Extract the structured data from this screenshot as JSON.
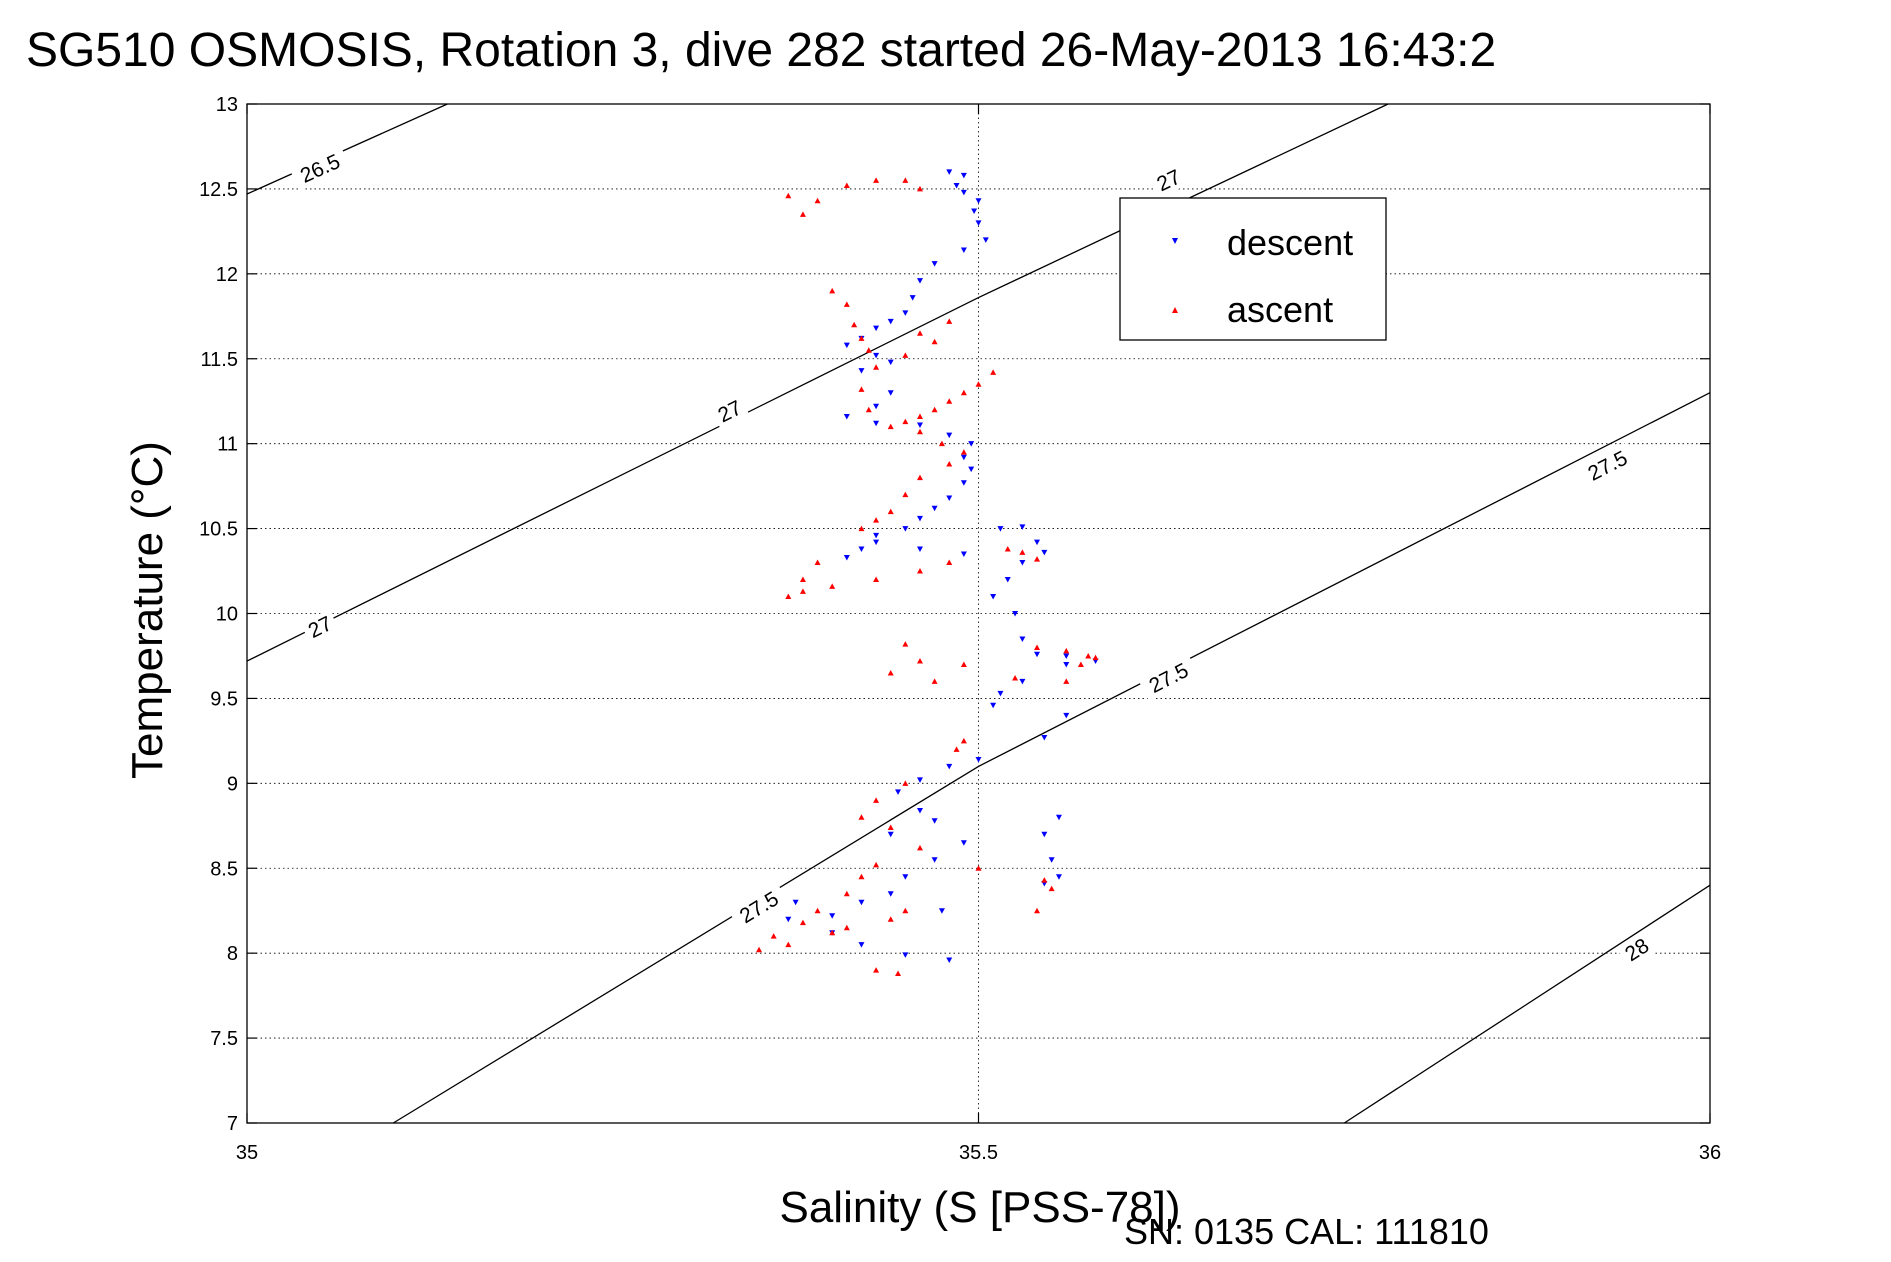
{
  "chart_data": {
    "type": "scatter",
    "title": "SG510 OSMOSIS, Rotation 3, dive 282 started 26-May-2013 16:43:2",
    "xlabel": "Salinity (S [PSS-78])",
    "ylabel": "Temperature (°C)",
    "xlim": [
      35,
      36
    ],
    "ylim": [
      7,
      13
    ],
    "x_ticks": [
      "35",
      "35.5",
      "36"
    ],
    "x_tick_values": [
      35,
      35.5,
      36
    ],
    "y_ticks": [
      "7",
      "7.5",
      "8",
      "8.5",
      "9",
      "9.5",
      "10",
      "10.5",
      "11",
      "11.5",
      "12",
      "12.5",
      "13"
    ],
    "y_tick_values": [
      7,
      7.5,
      8,
      8.5,
      9,
      9.5,
      10,
      10.5,
      11,
      11.5,
      12,
      12.5,
      13
    ],
    "grid": true,
    "legend_position": "top-right",
    "density_contours": [
      {
        "label": "26.5",
        "points": [
          [
            35,
            12.47
          ],
          [
            35.137,
            13
          ]
        ],
        "label_at": [
          [
            35.05,
            12.62
          ]
        ]
      },
      {
        "label": "27",
        "points": [
          [
            35,
            9.72
          ],
          [
            35.5,
            11.86
          ],
          [
            35.78,
            13
          ]
        ],
        "label_at": [
          [
            35.05,
            9.92
          ],
          [
            35.33,
            11.19
          ],
          [
            35.63,
            12.55
          ]
        ]
      },
      {
        "label": "27.5",
        "points": [
          [
            35.1,
            7
          ],
          [
            35.5,
            9.1
          ],
          [
            36,
            11.3
          ]
        ],
        "label_at": [
          [
            35.35,
            8.27
          ],
          [
            35.63,
            9.62
          ],
          [
            35.93,
            10.87
          ]
        ]
      },
      {
        "label": "28",
        "points": [
          [
            35.75,
            7
          ],
          [
            36,
            8.4
          ]
        ],
        "label_at": [
          [
            35.95,
            8.02
          ]
        ]
      }
    ],
    "series": [
      {
        "name": "descent",
        "color": "#0000ff",
        "marker": "triangle-down",
        "points": [
          [
            35.48,
            12.6
          ],
          [
            35.49,
            12.58
          ],
          [
            35.485,
            12.52
          ],
          [
            35.49,
            12.48
          ],
          [
            35.5,
            12.43
          ],
          [
            35.497,
            12.37
          ],
          [
            35.5,
            12.3
          ],
          [
            35.505,
            12.2
          ],
          [
            35.49,
            12.14
          ],
          [
            35.47,
            12.06
          ],
          [
            35.46,
            11.96
          ],
          [
            35.455,
            11.86
          ],
          [
            35.45,
            11.77
          ],
          [
            35.44,
            11.72
          ],
          [
            35.43,
            11.68
          ],
          [
            35.42,
            11.62
          ],
          [
            35.41,
            11.58
          ],
          [
            35.43,
            11.52
          ],
          [
            35.44,
            11.48
          ],
          [
            35.42,
            11.43
          ],
          [
            35.44,
            11.3
          ],
          [
            35.43,
            11.22
          ],
          [
            35.41,
            11.16
          ],
          [
            35.43,
            11.12
          ],
          [
            35.46,
            11.11
          ],
          [
            35.48,
            11.05
          ],
          [
            35.495,
            11.0
          ],
          [
            35.49,
            10.92
          ],
          [
            35.495,
            10.85
          ],
          [
            35.49,
            10.77
          ],
          [
            35.48,
            10.68
          ],
          [
            35.47,
            10.62
          ],
          [
            35.46,
            10.56
          ],
          [
            35.45,
            10.5
          ],
          [
            35.43,
            10.46
          ],
          [
            35.42,
            10.38
          ],
          [
            35.41,
            10.33
          ],
          [
            35.43,
            10.42
          ],
          [
            35.46,
            10.38
          ],
          [
            35.49,
            10.35
          ],
          [
            35.515,
            10.5
          ],
          [
            35.53,
            10.51
          ],
          [
            35.54,
            10.42
          ],
          [
            35.545,
            10.36
          ],
          [
            35.53,
            10.3
          ],
          [
            35.52,
            10.2
          ],
          [
            35.51,
            10.1
          ],
          [
            35.525,
            10.0
          ],
          [
            35.53,
            9.85
          ],
          [
            35.54,
            9.76
          ],
          [
            35.56,
            9.7
          ],
          [
            35.58,
            9.72
          ],
          [
            35.56,
            9.75
          ],
          [
            35.53,
            9.6
          ],
          [
            35.515,
            9.53
          ],
          [
            35.51,
            9.46
          ],
          [
            35.5,
            9.14
          ],
          [
            35.48,
            9.1
          ],
          [
            35.46,
            9.02
          ],
          [
            35.445,
            8.95
          ],
          [
            35.46,
            8.84
          ],
          [
            35.44,
            8.7
          ],
          [
            35.47,
            8.78
          ],
          [
            35.49,
            8.65
          ],
          [
            35.47,
            8.55
          ],
          [
            35.45,
            8.45
          ],
          [
            35.44,
            8.35
          ],
          [
            35.42,
            8.3
          ],
          [
            35.4,
            8.22
          ],
          [
            35.4,
            8.12
          ],
          [
            35.42,
            8.05
          ],
          [
            35.45,
            7.99
          ],
          [
            35.48,
            7.96
          ],
          [
            35.375,
            8.3
          ],
          [
            35.37,
            8.2
          ],
          [
            35.555,
            8.8
          ],
          [
            35.545,
            8.7
          ],
          [
            35.55,
            8.55
          ],
          [
            35.555,
            8.45
          ],
          [
            35.545,
            8.41
          ],
          [
            35.545,
            9.27
          ],
          [
            35.56,
            9.4
          ],
          [
            35.475,
            8.25
          ]
        ]
      },
      {
        "name": "ascent",
        "color": "#ff0000",
        "marker": "triangle-up",
        "points": [
          [
            35.37,
            12.46
          ],
          [
            35.38,
            12.35
          ],
          [
            35.39,
            12.43
          ],
          [
            35.41,
            12.52
          ],
          [
            35.43,
            12.55
          ],
          [
            35.45,
            12.55
          ],
          [
            35.46,
            12.5
          ],
          [
            35.4,
            11.9
          ],
          [
            35.41,
            11.82
          ],
          [
            35.415,
            11.7
          ],
          [
            35.42,
            11.62
          ],
          [
            35.425,
            11.55
          ],
          [
            35.43,
            11.45
          ],
          [
            35.42,
            11.32
          ],
          [
            35.425,
            11.2
          ],
          [
            35.44,
            11.1
          ],
          [
            35.45,
            11.13
          ],
          [
            35.46,
            11.16
          ],
          [
            35.47,
            11.2
          ],
          [
            35.48,
            11.25
          ],
          [
            35.49,
            11.3
          ],
          [
            35.5,
            11.35
          ],
          [
            35.51,
            11.42
          ],
          [
            35.47,
            11.6
          ],
          [
            35.48,
            11.72
          ],
          [
            35.46,
            11.65
          ],
          [
            35.45,
            11.52
          ],
          [
            35.46,
            11.07
          ],
          [
            35.475,
            11.0
          ],
          [
            35.49,
            10.95
          ],
          [
            35.48,
            10.88
          ],
          [
            35.46,
            10.8
          ],
          [
            35.45,
            10.7
          ],
          [
            35.44,
            10.6
          ],
          [
            35.43,
            10.55
          ],
          [
            35.42,
            10.5
          ],
          [
            35.39,
            10.3
          ],
          [
            35.38,
            10.2
          ],
          [
            35.37,
            10.1
          ],
          [
            35.38,
            10.13
          ],
          [
            35.4,
            10.16
          ],
          [
            35.43,
            10.2
          ],
          [
            35.46,
            10.25
          ],
          [
            35.48,
            10.3
          ],
          [
            35.52,
            10.38
          ],
          [
            35.53,
            10.36
          ],
          [
            35.54,
            10.32
          ],
          [
            35.45,
            9.82
          ],
          [
            35.46,
            9.72
          ],
          [
            35.44,
            9.65
          ],
          [
            35.47,
            9.6
          ],
          [
            35.49,
            9.7
          ],
          [
            35.525,
            9.62
          ],
          [
            35.54,
            9.8
          ],
          [
            35.56,
            9.78
          ],
          [
            35.57,
            9.7
          ],
          [
            35.575,
            9.75
          ],
          [
            35.58,
            9.74
          ],
          [
            35.56,
            9.6
          ],
          [
            35.49,
            9.25
          ],
          [
            35.485,
            9.2
          ],
          [
            35.45,
            9.0
          ],
          [
            35.43,
            8.9
          ],
          [
            35.42,
            8.8
          ],
          [
            35.44,
            8.74
          ],
          [
            35.46,
            8.62
          ],
          [
            35.43,
            8.52
          ],
          [
            35.42,
            8.45
          ],
          [
            35.41,
            8.35
          ],
          [
            35.39,
            8.25
          ],
          [
            35.38,
            8.18
          ],
          [
            35.36,
            8.1
          ],
          [
            35.35,
            8.02
          ],
          [
            35.37,
            8.05
          ],
          [
            35.41,
            8.15
          ],
          [
            35.44,
            8.2
          ],
          [
            35.45,
            8.25
          ],
          [
            35.4,
            8.12
          ],
          [
            35.5,
            8.5
          ],
          [
            35.545,
            8.43
          ],
          [
            35.55,
            8.38
          ],
          [
            35.54,
            8.25
          ],
          [
            35.43,
            7.9
          ],
          [
            35.445,
            7.88
          ]
        ]
      }
    ]
  },
  "footer": {
    "serial": "SN: 0135  CAL: 111810"
  }
}
